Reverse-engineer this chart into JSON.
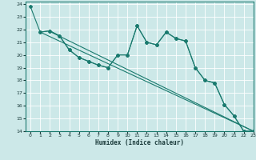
{
  "xlabel": "Humidex (Indice chaleur)",
  "xlim": [
    -0.5,
    23
  ],
  "ylim": [
    14,
    24.2
  ],
  "yticks": [
    14,
    15,
    16,
    17,
    18,
    19,
    20,
    21,
    22,
    23,
    24
  ],
  "xticks": [
    0,
    1,
    2,
    3,
    4,
    5,
    6,
    7,
    8,
    9,
    10,
    11,
    12,
    13,
    14,
    15,
    16,
    17,
    18,
    19,
    20,
    21,
    22,
    23
  ],
  "bg_color": "#cce8e8",
  "line_color": "#1a7a6e",
  "grid_color": "#ffffff",
  "line_zigzag": {
    "x": [
      0,
      1,
      2,
      3,
      4,
      5,
      6,
      7,
      8,
      9,
      10,
      11,
      12,
      13,
      14,
      15,
      16,
      17,
      18,
      19,
      20,
      21,
      22,
      23
    ],
    "y": [
      23.8,
      21.8,
      21.9,
      21.5,
      20.4,
      19.8,
      19.5,
      19.2,
      19.0,
      20.0,
      20.0,
      22.3,
      21.0,
      20.8,
      21.8,
      21.3,
      21.1,
      19.0,
      18.0,
      17.8,
      16.1,
      15.2,
      14.0,
      14.0
    ]
  },
  "line_straight_top": {
    "x": [
      1,
      23
    ],
    "y": [
      21.8,
      14.0
    ]
  },
  "line_straight_mid": {
    "x": [
      2,
      23
    ],
    "y": [
      21.85,
      14.0
    ]
  },
  "line_markers": {
    "x": [
      1,
      2,
      3,
      4,
      5,
      6,
      7,
      8,
      9,
      10,
      11,
      12,
      13,
      14,
      15,
      16,
      17,
      18,
      19,
      20,
      21,
      22,
      23
    ],
    "y": [
      21.8,
      21.9,
      21.5,
      20.4,
      19.8,
      19.5,
      19.2,
      19.0,
      20.0,
      20.0,
      22.3,
      21.0,
      20.8,
      21.8,
      21.3,
      21.1,
      19.0,
      18.0,
      17.8,
      16.1,
      15.2,
      14.0,
      14.0
    ]
  }
}
